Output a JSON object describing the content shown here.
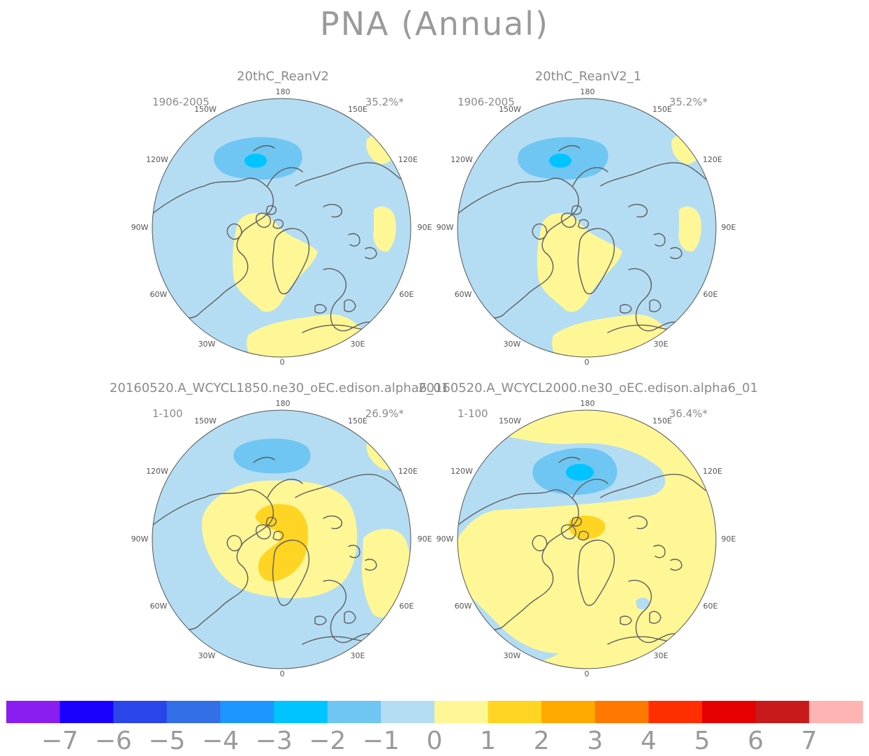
{
  "page": {
    "title": "PNA (Annual)"
  },
  "colors": {
    "bin_-7": "#8a1ef0",
    "bin_-6": "#1a00ff",
    "bin_-5": "#2a45ea",
    "bin_-4": "#3370e8",
    "bin_-3": "#1e96ff",
    "bin_-2": "#00c4ff",
    "bin_-1": "#6fc6f3",
    "bin_0": "#b4ddf3",
    "bin_1": "#fff796",
    "bin_2": "#ffd422",
    "bin_3": "#ffa800",
    "bin_4": "#ff7800",
    "bin_5": "#ff2e00",
    "bin_6": "#e60000",
    "bin_7": "#c81a1a",
    "bin_8": "#ffb4b4",
    "coastline": "#5d5d5d",
    "border": "#555555"
  },
  "chart_data": [
    {
      "type": "heatmap",
      "projection": "north polar stereographic",
      "title": "20thC_ReanV2",
      "period": "1906-2005",
      "variance_explained": "35.2%*",
      "longitude_labels": [
        "180",
        "150E",
        "120E",
        "90E",
        "60E",
        "30E",
        "0",
        "30W",
        "60W",
        "90W",
        "120W",
        "150W"
      ],
      "dominant_background": "-1 to 0",
      "features": [
        {
          "region": "North Pacific (Aleutian)",
          "value_range": "-3 to -2"
        },
        {
          "region": "North Pacific core",
          "value_range": "-4 to -3"
        },
        {
          "region": "North America / Canada",
          "value_range": "0 to 1"
        },
        {
          "region": "Subtropical Atlantic / North Africa",
          "value_range": "0 to 1"
        },
        {
          "region": "Central Asia / Siberia",
          "value_range": "0 to 1"
        }
      ]
    },
    {
      "type": "heatmap",
      "projection": "north polar stereographic",
      "title": "20thC_ReanV2_1",
      "period": "1906-2005",
      "variance_explained": "35.2%*",
      "longitude_labels": [
        "180",
        "150E",
        "120E",
        "90E",
        "60E",
        "30E",
        "0",
        "30W",
        "60W",
        "90W",
        "120W",
        "150W"
      ],
      "dominant_background": "-1 to 0",
      "features": [
        {
          "region": "North Pacific (Aleutian)",
          "value_range": "-3 to -2"
        },
        {
          "region": "North Pacific core",
          "value_range": "-4 to -3"
        },
        {
          "region": "North America / Canada",
          "value_range": "0 to 1"
        },
        {
          "region": "Subtropical Atlantic / North Africa",
          "value_range": "0 to 1"
        },
        {
          "region": "Central Asia / Siberia",
          "value_range": "0 to 1"
        }
      ]
    },
    {
      "type": "heatmap",
      "projection": "north polar stereographic",
      "title": "20160520.A_WCYCL1850.ne30_oEC.edison.alpha6_01",
      "period": "1-100",
      "variance_explained": "26.9%*",
      "longitude_labels": [
        "180",
        "150E",
        "120E",
        "90E",
        "60E",
        "30E",
        "0",
        "30W",
        "60W",
        "90W",
        "120W",
        "150W"
      ],
      "dominant_background": "-1 to 0",
      "features": [
        {
          "region": "North Pacific (Aleutian)",
          "value_range": "-3 to -2"
        },
        {
          "region": "Arctic / Canada / Greenland",
          "value_range": "0 to 1"
        },
        {
          "region": "Canadian Archipelago / Greenland core",
          "value_range": "1 to 2"
        },
        {
          "region": "Central Asia",
          "value_range": "0 to 1"
        }
      ]
    },
    {
      "type": "heatmap",
      "projection": "north polar stereographic",
      "title": "20160520.A_WCYCL2000.ne30_oEC.edison.alpha6_01",
      "period": "1-100",
      "variance_explained": "36.4%*",
      "longitude_labels": [
        "180",
        "150E",
        "120E",
        "90E",
        "60E",
        "30E",
        "0",
        "30W",
        "60W",
        "90W",
        "120W",
        "150W"
      ],
      "dominant_background": "0 to 1",
      "features": [
        {
          "region": "North Pacific (Aleutian)",
          "value_range": "-3 to -2"
        },
        {
          "region": "North Pacific core",
          "value_range": "-4 to -3"
        },
        {
          "region": "Canada (Hudson Bay)",
          "value_range": "1 to 2"
        },
        {
          "region": "North Atlantic / US east",
          "value_range": "-1 to 0"
        }
      ]
    }
  ],
  "colorbar": {
    "ticks": [
      "−7",
      "−6",
      "−5",
      "−4",
      "−3",
      "−2",
      "−1",
      "0",
      "1",
      "2",
      "3",
      "4",
      "5",
      "6",
      "7"
    ],
    "bin_colors": [
      "#8a1ef0",
      "#1a00ff",
      "#2a45ea",
      "#3370e8",
      "#1e96ff",
      "#00c4ff",
      "#6fc6f3",
      "#b4ddf3",
      "#fff796",
      "#ffd422",
      "#ffa800",
      "#ff7800",
      "#ff2e00",
      "#e60000",
      "#c81a1a",
      "#ffb4b4"
    ]
  }
}
